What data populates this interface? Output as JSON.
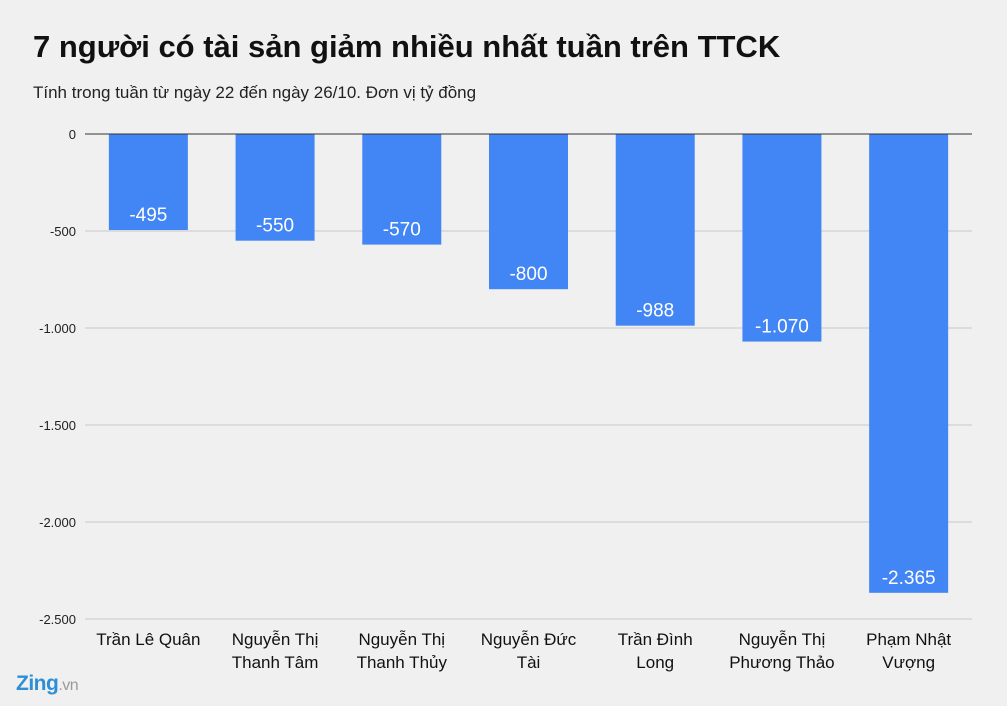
{
  "header": {
    "title": "7 người có tài sản giảm nhiều nhất tuần trên TTCK",
    "subtitle": "Tính trong tuần từ ngày 22 đến ngày 26/10. Đơn vị tỷ đồng"
  },
  "logo": {
    "main": "Zing",
    "suffix": ".vn",
    "colors": {
      "main": "#2d8fd5",
      "suffix": "#9a9a9a"
    }
  },
  "chart_data": {
    "type": "bar",
    "title": "7 người có tài sản giảm nhiều nhất tuần trên TTCK",
    "subtitle": "Tính trong tuần từ ngày 22 đến ngày 26/10. Đơn vị tỷ đồng",
    "categories": [
      [
        "Trần Lê Quân"
      ],
      [
        "Nguyễn Thị",
        "Thanh Tâm"
      ],
      [
        "Nguyễn Thị",
        "Thanh Thủy"
      ],
      [
        "Nguyễn Đức",
        "Tài"
      ],
      [
        "Trần Đình",
        "Long"
      ],
      [
        "Nguyễn Thị",
        "Phương Thảo"
      ],
      [
        "Phạm Nhật",
        "Vượng"
      ]
    ],
    "values": [
      -495,
      -550,
      -570,
      -800,
      -988,
      -1070,
      -2365
    ],
    "data_labels": [
      "-495",
      "-550",
      "-570",
      "-800",
      "-988",
      "-1.070",
      "-2.365"
    ],
    "yticks": [
      0,
      -500,
      -1000,
      -1500,
      -2000,
      -2500
    ],
    "ytick_labels": [
      "0",
      "-500",
      "-1.000",
      "-1.500",
      "-2.000",
      "-2.500"
    ],
    "ylim": [
      -2500,
      0
    ],
    "grid": true,
    "legend": "none",
    "colors": {
      "bar": "#4285f4",
      "label": "#ffffff",
      "grid": "#c8c8c8",
      "zero_line": "#333333"
    }
  }
}
